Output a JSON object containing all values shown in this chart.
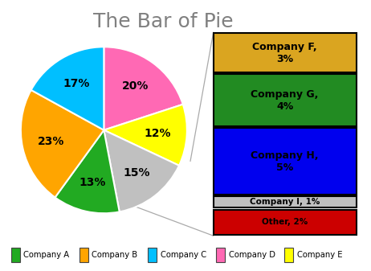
{
  "title": "The Bar of Pie",
  "title_fontsize": 18,
  "title_color": "#808080",
  "pie_values": [
    20,
    12,
    15,
    13,
    23,
    17
  ],
  "pie_colors": [
    "#FF69B4",
    "#FFFF00",
    "#C0C0C0",
    "#22AA22",
    "#FFA500",
    "#00BFFF"
  ],
  "pie_pct_labels": [
    "20%",
    "12%",
    "15%",
    "13%",
    "23%",
    "17%"
  ],
  "bar_labels": [
    "Company F,\n3%",
    "Company G,\n4%",
    "Company H,\n5%",
    "Company I, 1%",
    "Other, 2%"
  ],
  "bar_values": [
    3,
    4,
    5,
    1,
    2
  ],
  "bar_colors": [
    "#DAA520",
    "#228B22",
    "#0000EE",
    "#C0C0C0",
    "#CC0000"
  ],
  "legend_items": [
    {
      "label": "Company A",
      "color": "#22AA22"
    },
    {
      "label": "Company B",
      "color": "#FFA500"
    },
    {
      "label": "Company C",
      "color": "#00BFFF"
    },
    {
      "label": "Company D",
      "color": "#FF69B4"
    },
    {
      "label": "Company E",
      "color": "#FFFF00"
    }
  ],
  "background_color": "#FFFFFF",
  "border_color": "#AAAAAA",
  "connector_color": "#AAAAAA",
  "pie_startangle": 90,
  "pie_label_r": 0.65,
  "pie_label_fontsize": 10
}
